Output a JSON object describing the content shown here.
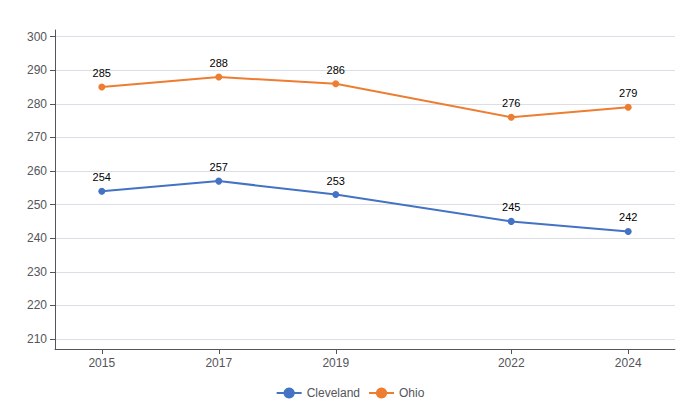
{
  "chart_data": {
    "type": "line",
    "x": [
      2015,
      2017,
      2019,
      2022,
      2024
    ],
    "series": [
      {
        "name": "Cleveland",
        "color": "#4472C4",
        "values": [
          254,
          257,
          253,
          245,
          242
        ]
      },
      {
        "name": "Ohio",
        "color": "#ED7D31",
        "values": [
          285,
          288,
          286,
          276,
          279
        ]
      }
    ],
    "xlim": [
      2014.2,
      2024.8
    ],
    "xticks": [
      2015,
      2017,
      2019,
      2022,
      2024
    ],
    "ylim": [
      207,
      302
    ],
    "yticks": [
      210,
      220,
      230,
      240,
      250,
      260,
      270,
      280,
      290,
      300
    ],
    "grid": "y",
    "legend": "bottom",
    "data_labels": true,
    "marker": "circle"
  }
}
